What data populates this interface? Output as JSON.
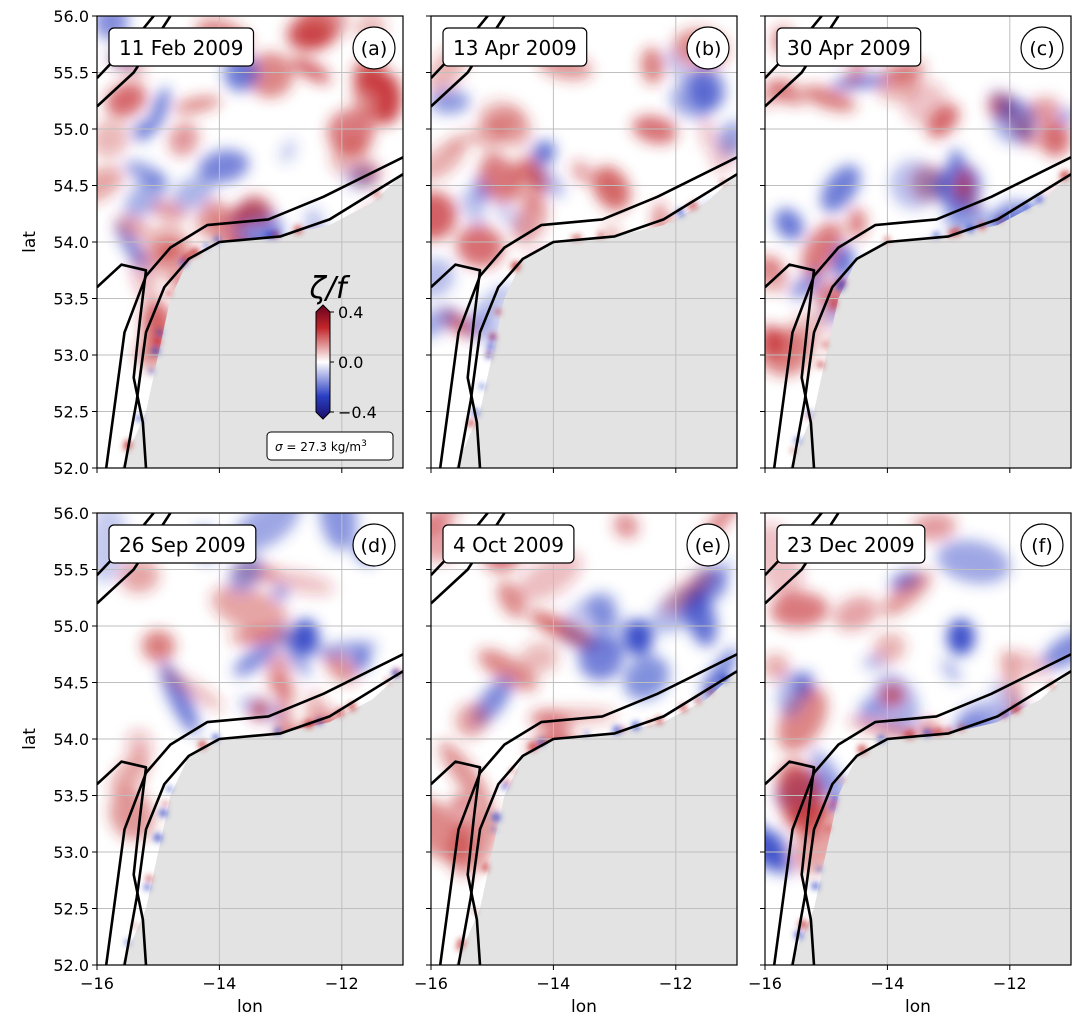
{
  "colors": {
    "positive": "#c2262a",
    "negative": "#2a3fc4",
    "land": "#e3e3e3",
    "grid": "#bfbfbf",
    "contour": "#000000"
  },
  "colorbar": {
    "title": "ζ/f",
    "tick_labels": [
      "0.4",
      "0.0",
      "−0.4"
    ],
    "range": [
      -0.4,
      0.4
    ]
  },
  "density_label": {
    "prefix": "σ =",
    "value": "27.3 kg/m",
    "exponent": "3"
  },
  "chart_data": {
    "type": "heatmap",
    "layout": "2x3 panel grid",
    "colormap": "seismic (blue negative, white zero, red positive)",
    "xlabel": "lon",
    "ylabel": "lat",
    "xlim": [
      -16,
      -11
    ],
    "ylim": [
      52.0,
      56.0
    ],
    "x_ticks": [
      -16,
      -14,
      -12
    ],
    "x_tick_labels": [
      "−16",
      "−14",
      "−12"
    ],
    "y_ticks": [
      52.0,
      52.5,
      53.0,
      53.5,
      54.0,
      54.5,
      55.0,
      55.5,
      56.0
    ],
    "y_tick_labels": [
      "52.0",
      "52.5",
      "53.0",
      "53.5",
      "54.0",
      "54.5",
      "55.0",
      "55.5",
      "56.0"
    ],
    "grid": true,
    "panels": [
      {
        "letter": "(a)",
        "date": "11 Feb 2009"
      },
      {
        "letter": "(b)",
        "date": "13 Apr 2009"
      },
      {
        "letter": "(c)",
        "date": "30 Apr 2009"
      },
      {
        "letter": "(d)",
        "date": "26 Sep 2009"
      },
      {
        "letter": "(e)",
        "date": "4 Oct 2009"
      },
      {
        "letter": "(f)",
        "date": "23 Dec 2009"
      }
    ]
  }
}
